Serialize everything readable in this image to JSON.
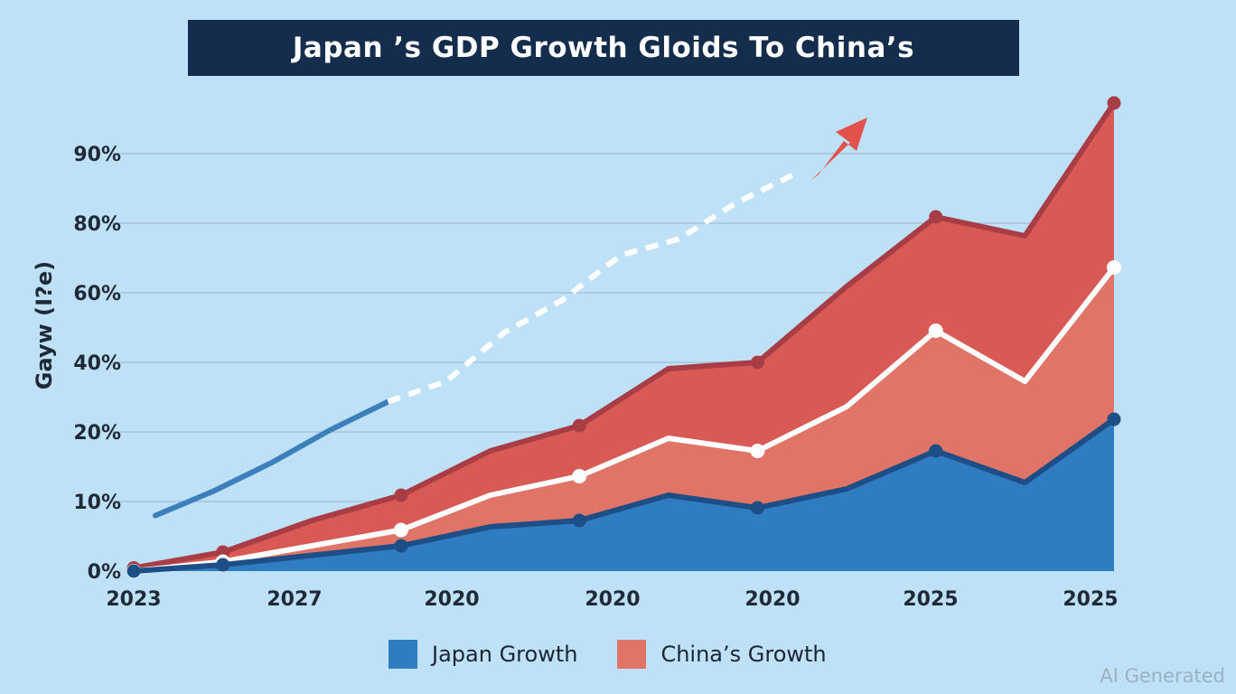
{
  "chart_data": {
    "type": "area",
    "title": "Japan ’s GDP Growth Gloids To China’s",
    "ylabel": "Gayw (I?e)",
    "xlabel": "",
    "ytick_labels": [
      "0%",
      "10%",
      "20%",
      "40%",
      "60%",
      "80%",
      "90%"
    ],
    "xtick_labels": [
      "2023",
      "2027",
      "2020",
      "2020",
      "2020",
      "2025",
      "2025"
    ],
    "series": [
      {
        "name": "Japan Growth",
        "color": "#2f7cc1",
        "line_color": "#1d4e86",
        "values": [
          0,
          1,
          2.5,
          4,
          7,
          8,
          12,
          10,
          13,
          19,
          14,
          24
        ]
      },
      {
        "name": "China’s Growth",
        "color": "#e07467",
        "line_color": "#ffffff",
        "values": [
          0,
          1.5,
          4,
          6.5,
          12,
          15,
          21,
          19,
          26,
          38,
          30,
          48
        ]
      },
      {
        "name": "Upper band",
        "color": "#d95a55",
        "line_color": "#a83d45",
        "values": [
          0.5,
          3,
          8,
          12,
          19,
          23,
          32,
          33,
          45,
          56,
          53,
          74
        ]
      }
    ],
    "trend_line": {
      "values": [
        3.5,
        6.5,
        10,
        14,
        17.5,
        20,
        26,
        30,
        35.5,
        37.5,
        42,
        45.5
      ]
    },
    "legend": [
      "Japan Growth",
      "China’s Growth"
    ],
    "legend_position": "bottom",
    "watermark": "AI Generated"
  }
}
